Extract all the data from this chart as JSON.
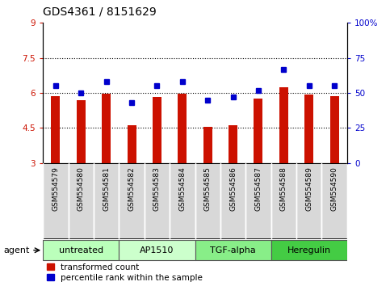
{
  "title": "GDS4361 / 8151629",
  "samples": [
    "GSM554579",
    "GSM554580",
    "GSM554581",
    "GSM554582",
    "GSM554583",
    "GSM554584",
    "GSM554585",
    "GSM554586",
    "GSM554587",
    "GSM554588",
    "GSM554589",
    "GSM554590"
  ],
  "red_values": [
    5.85,
    5.7,
    5.97,
    4.62,
    5.82,
    5.96,
    4.55,
    4.62,
    5.75,
    6.25,
    5.92,
    5.87
  ],
  "blue_values": [
    55,
    50,
    58,
    43,
    55,
    58,
    45,
    47,
    52,
    67,
    55,
    55
  ],
  "ylim_left": [
    3,
    9
  ],
  "ylim_right": [
    0,
    100
  ],
  "yticks_left": [
    3,
    4.5,
    6.0,
    7.5,
    9
  ],
  "ytick_labels_left": [
    "3",
    "4.5",
    "6",
    "7.5",
    "9"
  ],
  "yticks_right": [
    0,
    25,
    50,
    75,
    100
  ],
  "ytick_labels_right": [
    "0",
    "25",
    "50",
    "75",
    "100%"
  ],
  "hlines": [
    4.5,
    6.0,
    7.5
  ],
  "bar_color": "#cc1100",
  "dot_color": "#0000cc",
  "bar_width": 0.35,
  "agents": [
    {
      "label": "untreated",
      "start": 0,
      "end": 3,
      "color": "#bbffbb"
    },
    {
      "label": "AP1510",
      "start": 3,
      "end": 6,
      "color": "#ccffcc"
    },
    {
      "label": "TGF-alpha",
      "start": 6,
      "end": 9,
      "color": "#88ee88"
    },
    {
      "label": "Heregulin",
      "start": 9,
      "end": 12,
      "color": "#44cc44"
    }
  ],
  "legend_red_label": "transformed count",
  "legend_blue_label": "percentile rank within the sample",
  "agent_label": "agent",
  "sample_bg_color": "#d8d8d8",
  "title_fontsize": 10,
  "x_tick_fontsize": 6.5,
  "ytick_fontsize": 7.5
}
